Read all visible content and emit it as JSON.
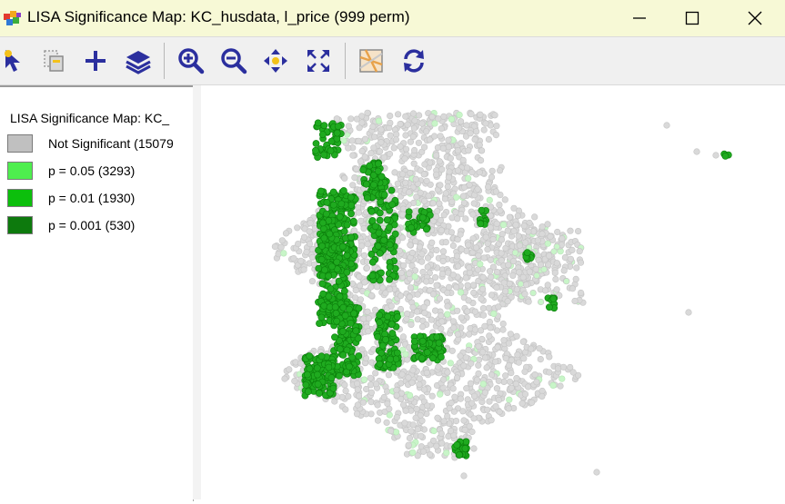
{
  "window": {
    "title": "LISA Significance Map: KC_husdata, l_price (999 perm)",
    "app_icon": "geoda-app-icon",
    "controls": [
      "minimize-icon",
      "maximize-icon",
      "close-icon"
    ]
  },
  "toolbar": {
    "tools": [
      {
        "name": "select-tool-icon"
      },
      {
        "name": "copy-selection-icon"
      },
      {
        "name": "add-layer-icon"
      },
      {
        "name": "layers-icon"
      },
      {
        "name": "zoom-in-icon"
      },
      {
        "name": "zoom-out-icon"
      },
      {
        "name": "pan-icon"
      },
      {
        "name": "fit-extent-icon"
      },
      {
        "name": "basemap-icon"
      },
      {
        "name": "refresh-icon"
      }
    ],
    "accent_color": "#2b2f9e"
  },
  "legend": {
    "title": "LISA Significance Map: KC_",
    "items": [
      {
        "label": "Not Significant (15079",
        "color": "#c0c0c0"
      },
      {
        "label": "p = 0.05 (3293)",
        "color": "#4eee4e"
      },
      {
        "label": "p = 0.01 (1930)",
        "color": "#0cbf0c"
      },
      {
        "label": "p = 0.001 (530)",
        "color": "#0d7a0d"
      }
    ]
  },
  "map": {
    "point_colors": {
      "not_significant": "#d9d9d9",
      "not_significant_stroke": "#c4c4c4",
      "p05": "#c8f5c8",
      "p01": "#1faa1f",
      "p01_stroke": "#0a7d0a"
    }
  }
}
